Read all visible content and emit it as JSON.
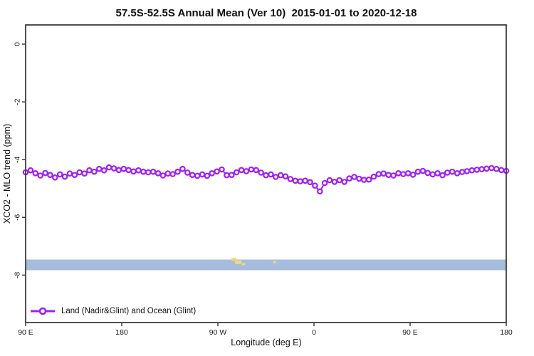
{
  "chart_data": {
    "type": "line",
    "title": "57.5S-52.5S Annual Mean (Ver 10)  2015-01-01 to 2020-12-18",
    "xlabel": "Longitude (deg E)",
    "ylabel": "XCO2 - MLO trend (ppm)",
    "grid": false,
    "x_axis": {
      "note": "longitude wraps eastward from 90E through 180, 90W, 0, 90E to 180",
      "range_deg_unwrapped": [
        90,
        540
      ],
      "ticks": [
        {
          "lon": 90,
          "label": "90 E"
        },
        {
          "lon": 180,
          "label": "180"
        },
        {
          "lon": 270,
          "label": "90 W"
        },
        {
          "lon": 360,
          "label": "0"
        },
        {
          "lon": 450,
          "label": "90 E"
        },
        {
          "lon": 540,
          "label": "180"
        }
      ]
    },
    "y_axis": {
      "range": [
        0.67,
        -9.63
      ],
      "ticks": [
        {
          "value": 0,
          "label": "0"
        },
        {
          "value": -2,
          "label": "-2"
        },
        {
          "value": -4,
          "label": "-4"
        },
        {
          "value": -6,
          "label": "-6"
        },
        {
          "value": -8,
          "label": "-8"
        }
      ]
    },
    "legend": {
      "position": "bottom-left-inside",
      "entries": [
        {
          "label": "Land (Nadir&Glint) and Ocean (Glint)",
          "color": "#A020F0",
          "marker": "open-circle-line"
        }
      ]
    },
    "series": [
      {
        "name": "Land (Nadir&Glint) and Ocean (Glint)",
        "color": "#A020F0",
        "marker": "open-circle",
        "x_start_deg": 90,
        "x_step_deg": 4.5918,
        "values": [
          -4.44,
          -4.37,
          -4.47,
          -4.55,
          -4.46,
          -4.53,
          -4.62,
          -4.51,
          -4.59,
          -4.48,
          -4.53,
          -4.44,
          -4.48,
          -4.37,
          -4.42,
          -4.32,
          -4.37,
          -4.27,
          -4.3,
          -4.36,
          -4.32,
          -4.36,
          -4.41,
          -4.37,
          -4.42,
          -4.44,
          -4.42,
          -4.47,
          -4.55,
          -4.48,
          -4.5,
          -4.42,
          -4.32,
          -4.45,
          -4.53,
          -4.56,
          -4.51,
          -4.56,
          -4.47,
          -4.41,
          -4.34,
          -4.54,
          -4.53,
          -4.44,
          -4.36,
          -4.4,
          -4.34,
          -4.36,
          -4.45,
          -4.54,
          -4.51,
          -4.6,
          -4.54,
          -4.58,
          -4.67,
          -4.73,
          -4.75,
          -4.73,
          -4.78,
          -4.9,
          -5.1,
          -4.81,
          -4.71,
          -4.77,
          -4.71,
          -4.77,
          -4.65,
          -4.6,
          -4.66,
          -4.7,
          -4.69,
          -4.59,
          -4.5,
          -4.48,
          -4.53,
          -4.55,
          -4.47,
          -4.5,
          -4.47,
          -4.52,
          -4.42,
          -4.39,
          -4.46,
          -4.51,
          -4.47,
          -4.54,
          -4.45,
          -4.42,
          -4.47,
          -4.43,
          -4.4,
          -4.37,
          -4.35,
          -4.33,
          -4.31,
          -4.29,
          -4.32,
          -4.36,
          -4.39
        ]
      }
    ],
    "band": {
      "name": "horizontal-reference-band",
      "value_top": -7.46,
      "value_bottom": -7.83,
      "color": "#A6BCDC"
    },
    "sparse_marks": {
      "color": "#F5D87A",
      "marks": [
        {
          "lon": 285,
          "value": -7.45,
          "w": 7,
          "h": 4
        },
        {
          "lon": 289,
          "value": -7.55,
          "w": 9,
          "h": 5
        },
        {
          "lon": 294,
          "value": -7.62,
          "w": 5,
          "h": 3
        },
        {
          "lon": 323,
          "value": -7.55,
          "w": 4,
          "h": 3
        }
      ]
    }
  },
  "colors": {
    "axis": "#3d3d3d",
    "text": "#111111",
    "background": "#ffffff"
  }
}
